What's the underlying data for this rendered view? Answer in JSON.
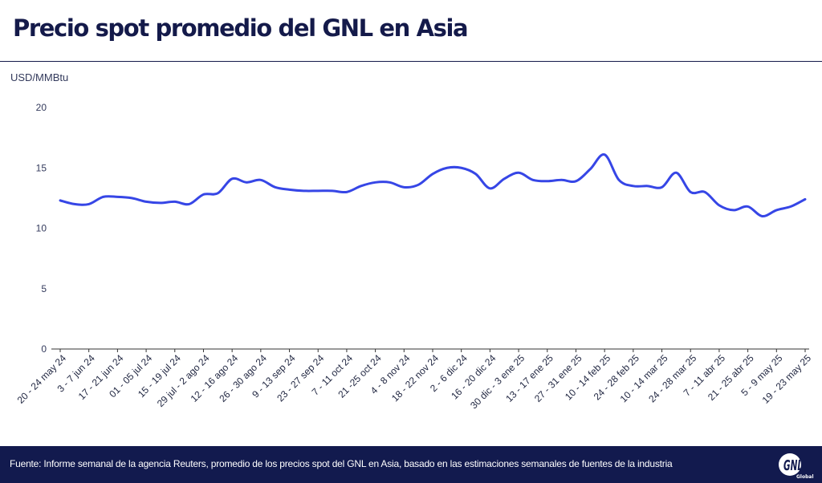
{
  "title": "Precio spot promedio del GNL en Asia",
  "unit_label": "USD/MMBtu",
  "footer": {
    "source": "Fuente: Informe semanal de la agencia Reuters, promedio de los precios spot del GNL en Asia, basado en las estimaciones semanales de fuentes de la industria",
    "logo_text": "GNL",
    "logo_subtext": "Global"
  },
  "colors": {
    "line": "#3646e6",
    "title": "#141a4a",
    "footer_bg": "#121a4e",
    "grid": "#d9d9d9"
  },
  "chart_data": {
    "type": "line",
    "ylabel": "USD/MMBtu",
    "ylim": [
      0,
      20
    ],
    "yticks": [
      0,
      5,
      10,
      15,
      20
    ],
    "grid": "none",
    "x_tick_labels": [
      "20 - 24 may 24",
      "3 - 7 jun 24",
      "17 - 21 jun 24",
      "01 - 05 jul 24",
      "15 - 19 jul 24",
      "29 jul - 2 ago 24",
      "12 - 16 ago 24",
      "26 - 30 ago 24",
      "9 - 13 sep 24",
      "23 - 27 sep 24",
      "7 - 11 oct 24",
      "21 -25 oct 24",
      "4 - 8 nov 24",
      "18 - 22 nov 24",
      "2 - 6 dic 24",
      "16 - 20 dic 24",
      "30 dic - 3 ene 25",
      "13 - 17 ene 25",
      "27 - 31 ene 25",
      "10 - 14 feb 25",
      "24 - 28 feb 25",
      "10 - 14 mar 25",
      "24 - 28 mar 25",
      "7 - 11 abr 25",
      "21 - 25 abr 25",
      "5 - 9 may 25",
      "19 - 23 may 25"
    ],
    "series": [
      {
        "values": [
          12.3,
          12.0,
          12.0,
          12.6,
          12.6,
          12.5,
          12.2,
          12.1,
          12.2,
          12.0,
          12.8,
          12.9,
          14.1,
          13.8,
          14.0,
          13.4,
          13.2,
          13.1,
          13.1,
          13.1,
          13.0,
          13.5,
          13.8,
          13.8,
          13.4,
          13.6,
          14.5,
          15.0,
          15.0,
          14.5,
          13.3,
          14.1,
          14.6,
          14.0,
          13.9,
          14.0,
          13.9,
          14.9,
          16.1,
          14.0,
          13.5,
          13.5,
          13.4,
          14.6,
          13.0,
          13.0,
          11.9,
          11.5,
          11.8,
          11.0,
          11.5,
          11.8,
          12.4
        ]
      }
    ]
  }
}
